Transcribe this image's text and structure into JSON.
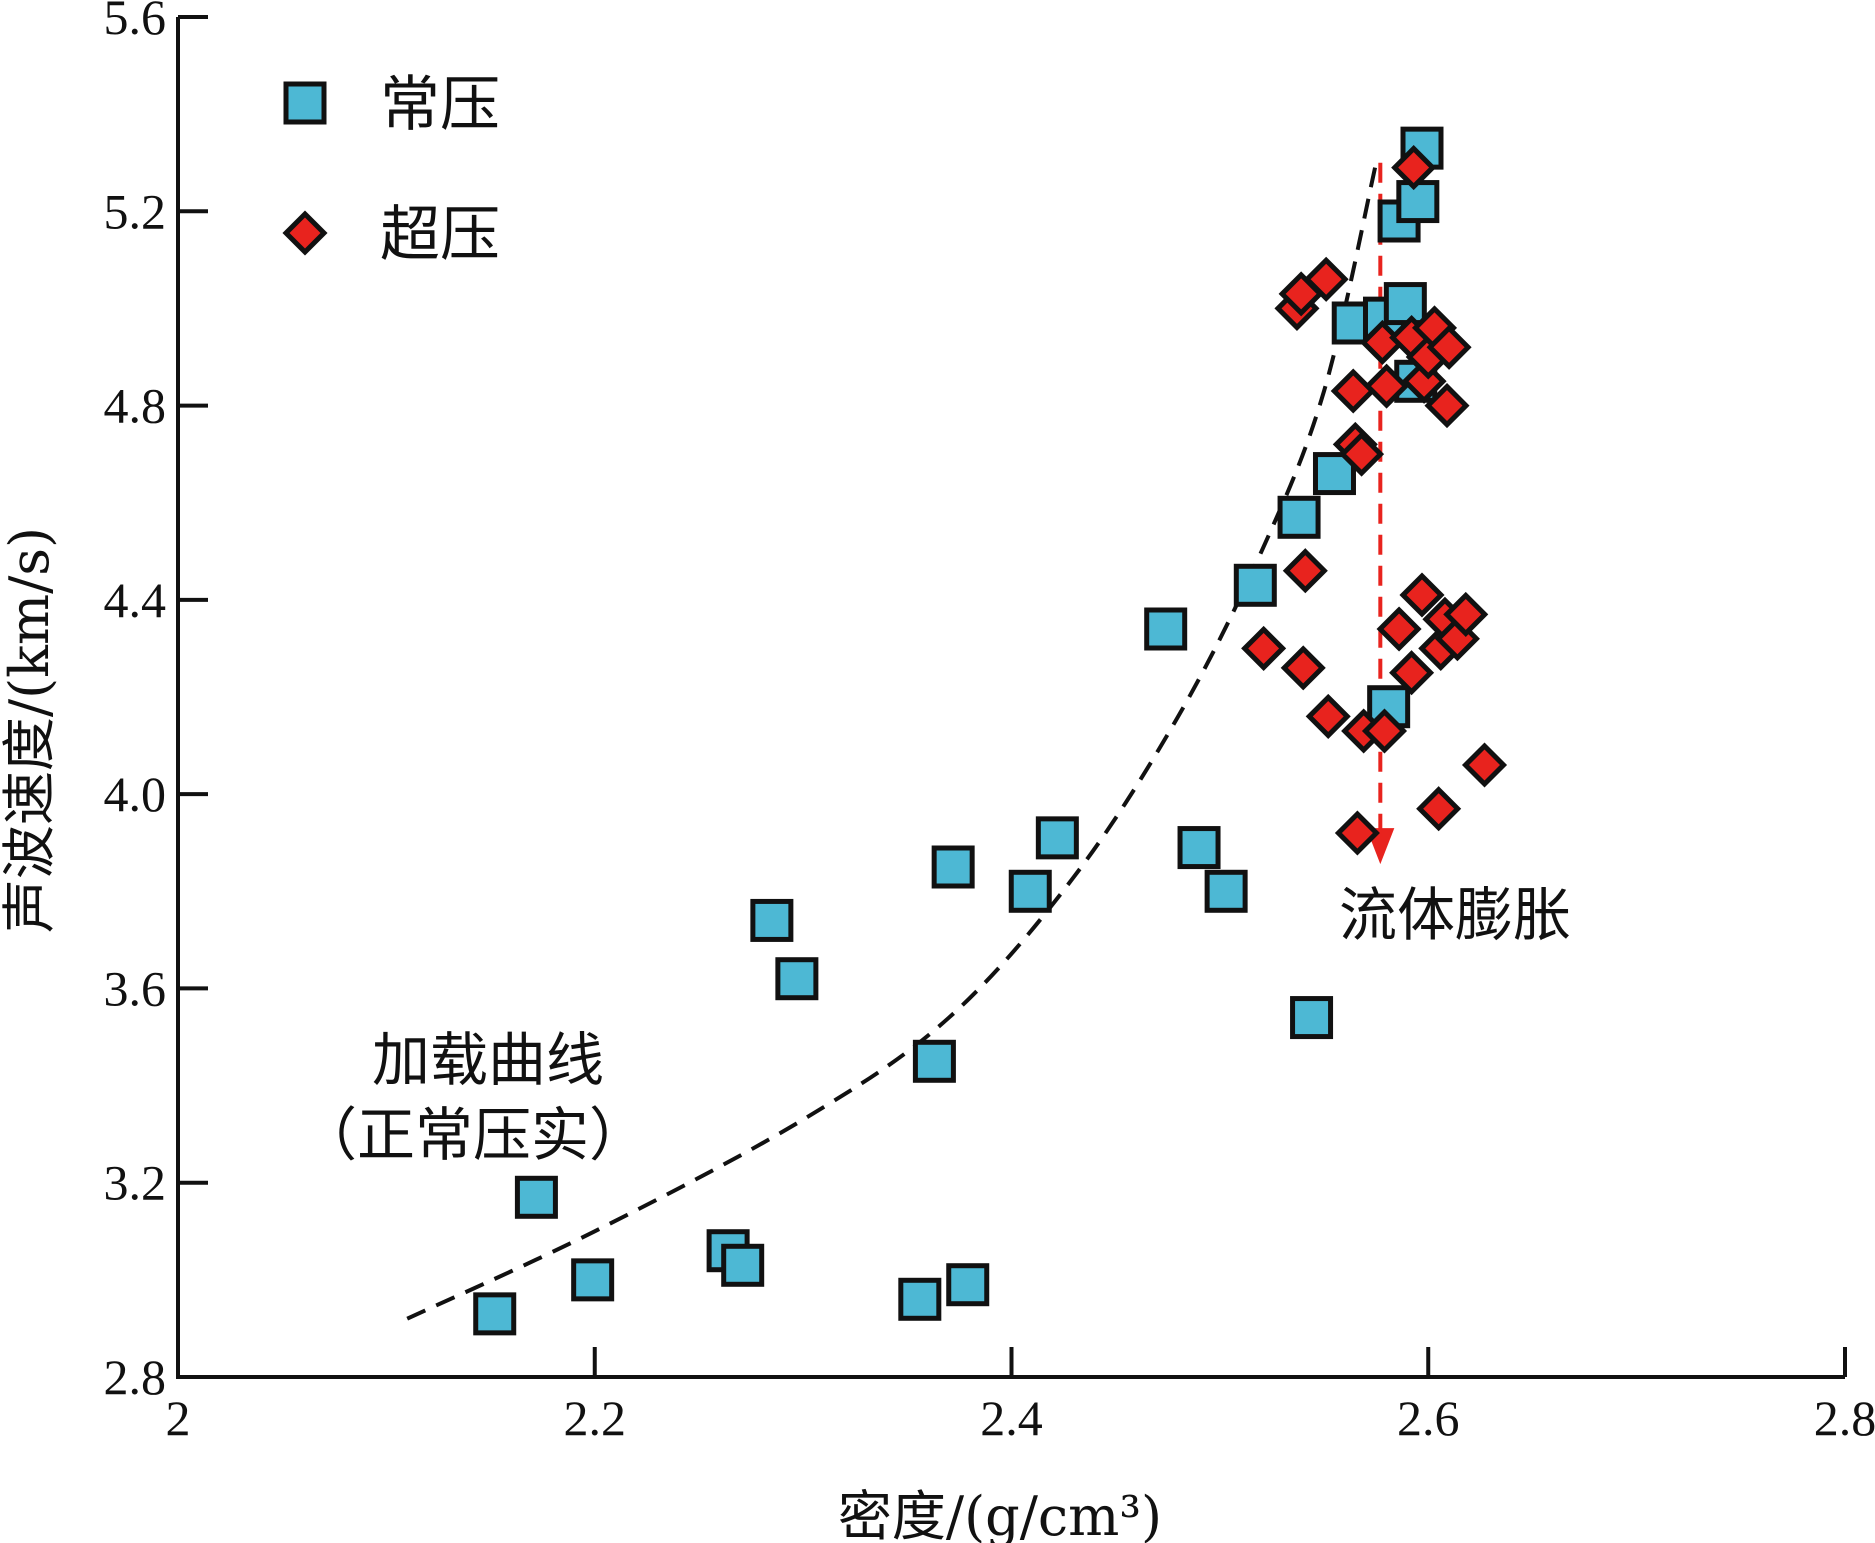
{
  "chart_data": {
    "type": "scatter",
    "xlabel": "密度/(g/cm³)",
    "ylabel": "声波速度/(km/s)",
    "xlim": [
      2.0,
      2.8
    ],
    "ylim": [
      2.8,
      5.6
    ],
    "xticks": [
      2.0,
      2.2,
      2.4,
      2.6,
      2.8
    ],
    "xtick_labels": [
      "2",
      "2.2",
      "2.4",
      "2.6",
      "2.8"
    ],
    "yticks": [
      2.8,
      3.2,
      3.6,
      4.0,
      4.4,
      4.8,
      5.2,
      5.6
    ],
    "ytick_labels": [
      "2.8",
      "3.2",
      "3.6",
      "4.0",
      "4.4",
      "4.8",
      "5.2",
      "5.6"
    ],
    "grid": false,
    "legend_position": "top-left",
    "series": [
      {
        "name": "常压",
        "marker": "square",
        "color": "#4db8d4",
        "points": [
          [
            2.152,
            2.93
          ],
          [
            2.172,
            3.17
          ],
          [
            2.199,
            3.0
          ],
          [
            2.264,
            3.06
          ],
          [
            2.271,
            3.03
          ],
          [
            2.285,
            3.74
          ],
          [
            2.297,
            3.62
          ],
          [
            2.356,
            2.96
          ],
          [
            2.363,
            3.45
          ],
          [
            2.372,
            3.85
          ],
          [
            2.379,
            2.99
          ],
          [
            2.409,
            3.8
          ],
          [
            2.422,
            3.91
          ],
          [
            2.474,
            4.34
          ],
          [
            2.49,
            3.89
          ],
          [
            2.503,
            3.8
          ],
          [
            2.517,
            4.43
          ],
          [
            2.538,
            4.57
          ],
          [
            2.544,
            3.54
          ],
          [
            2.555,
            4.66
          ],
          [
            2.564,
            4.97
          ],
          [
            2.579,
            4.98
          ],
          [
            2.581,
            4.18
          ],
          [
            2.586,
            5.18
          ],
          [
            2.589,
            5.01
          ],
          [
            2.594,
            4.85
          ],
          [
            2.595,
            5.22
          ],
          [
            2.597,
            5.33
          ]
        ]
      },
      {
        "name": "超压",
        "marker": "diamond",
        "color": "#e8231e",
        "points": [
          [
            2.521,
            4.3
          ],
          [
            2.537,
            5.0
          ],
          [
            2.539,
            5.03
          ],
          [
            2.54,
            4.26
          ],
          [
            2.541,
            4.46
          ],
          [
            2.551,
            5.06
          ],
          [
            2.552,
            4.16
          ],
          [
            2.564,
            4.83
          ],
          [
            2.565,
            4.72
          ],
          [
            2.566,
            3.92
          ],
          [
            2.568,
            4.7
          ],
          [
            2.569,
            4.13
          ],
          [
            2.578,
            4.93
          ],
          [
            2.579,
            4.13
          ],
          [
            2.58,
            4.84
          ],
          [
            2.586,
            4.34
          ],
          [
            2.592,
            4.25
          ],
          [
            2.592,
            4.94
          ],
          [
            2.593,
            5.29
          ],
          [
            2.597,
            4.41
          ],
          [
            2.598,
            4.85
          ],
          [
            2.6,
            4.9
          ],
          [
            2.603,
            4.96
          ],
          [
            2.605,
            3.97
          ],
          [
            2.606,
            4.3
          ],
          [
            2.608,
            4.36
          ],
          [
            2.609,
            4.8
          ],
          [
            2.61,
            4.92
          ],
          [
            2.614,
            4.32
          ],
          [
            2.618,
            4.37
          ],
          [
            2.627,
            4.06
          ]
        ]
      }
    ],
    "annotations": [
      {
        "type": "dashed-curve",
        "label_lines": [
          "加载曲线",
          "（正常压实）"
        ],
        "points": [
          [
            2.11,
            2.92
          ],
          [
            2.2,
            3.1
          ],
          [
            2.3,
            3.33
          ],
          [
            2.37,
            3.54
          ],
          [
            2.43,
            3.83
          ],
          [
            2.48,
            4.16
          ],
          [
            2.52,
            4.5
          ],
          [
            2.55,
            4.83
          ],
          [
            2.575,
            5.3
          ]
        ]
      },
      {
        "type": "dashed-arrow",
        "label": "流体膨胀",
        "color": "#e8231e",
        "from": [
          2.577,
          5.3
        ],
        "to": [
          2.577,
          3.86
        ]
      }
    ]
  }
}
